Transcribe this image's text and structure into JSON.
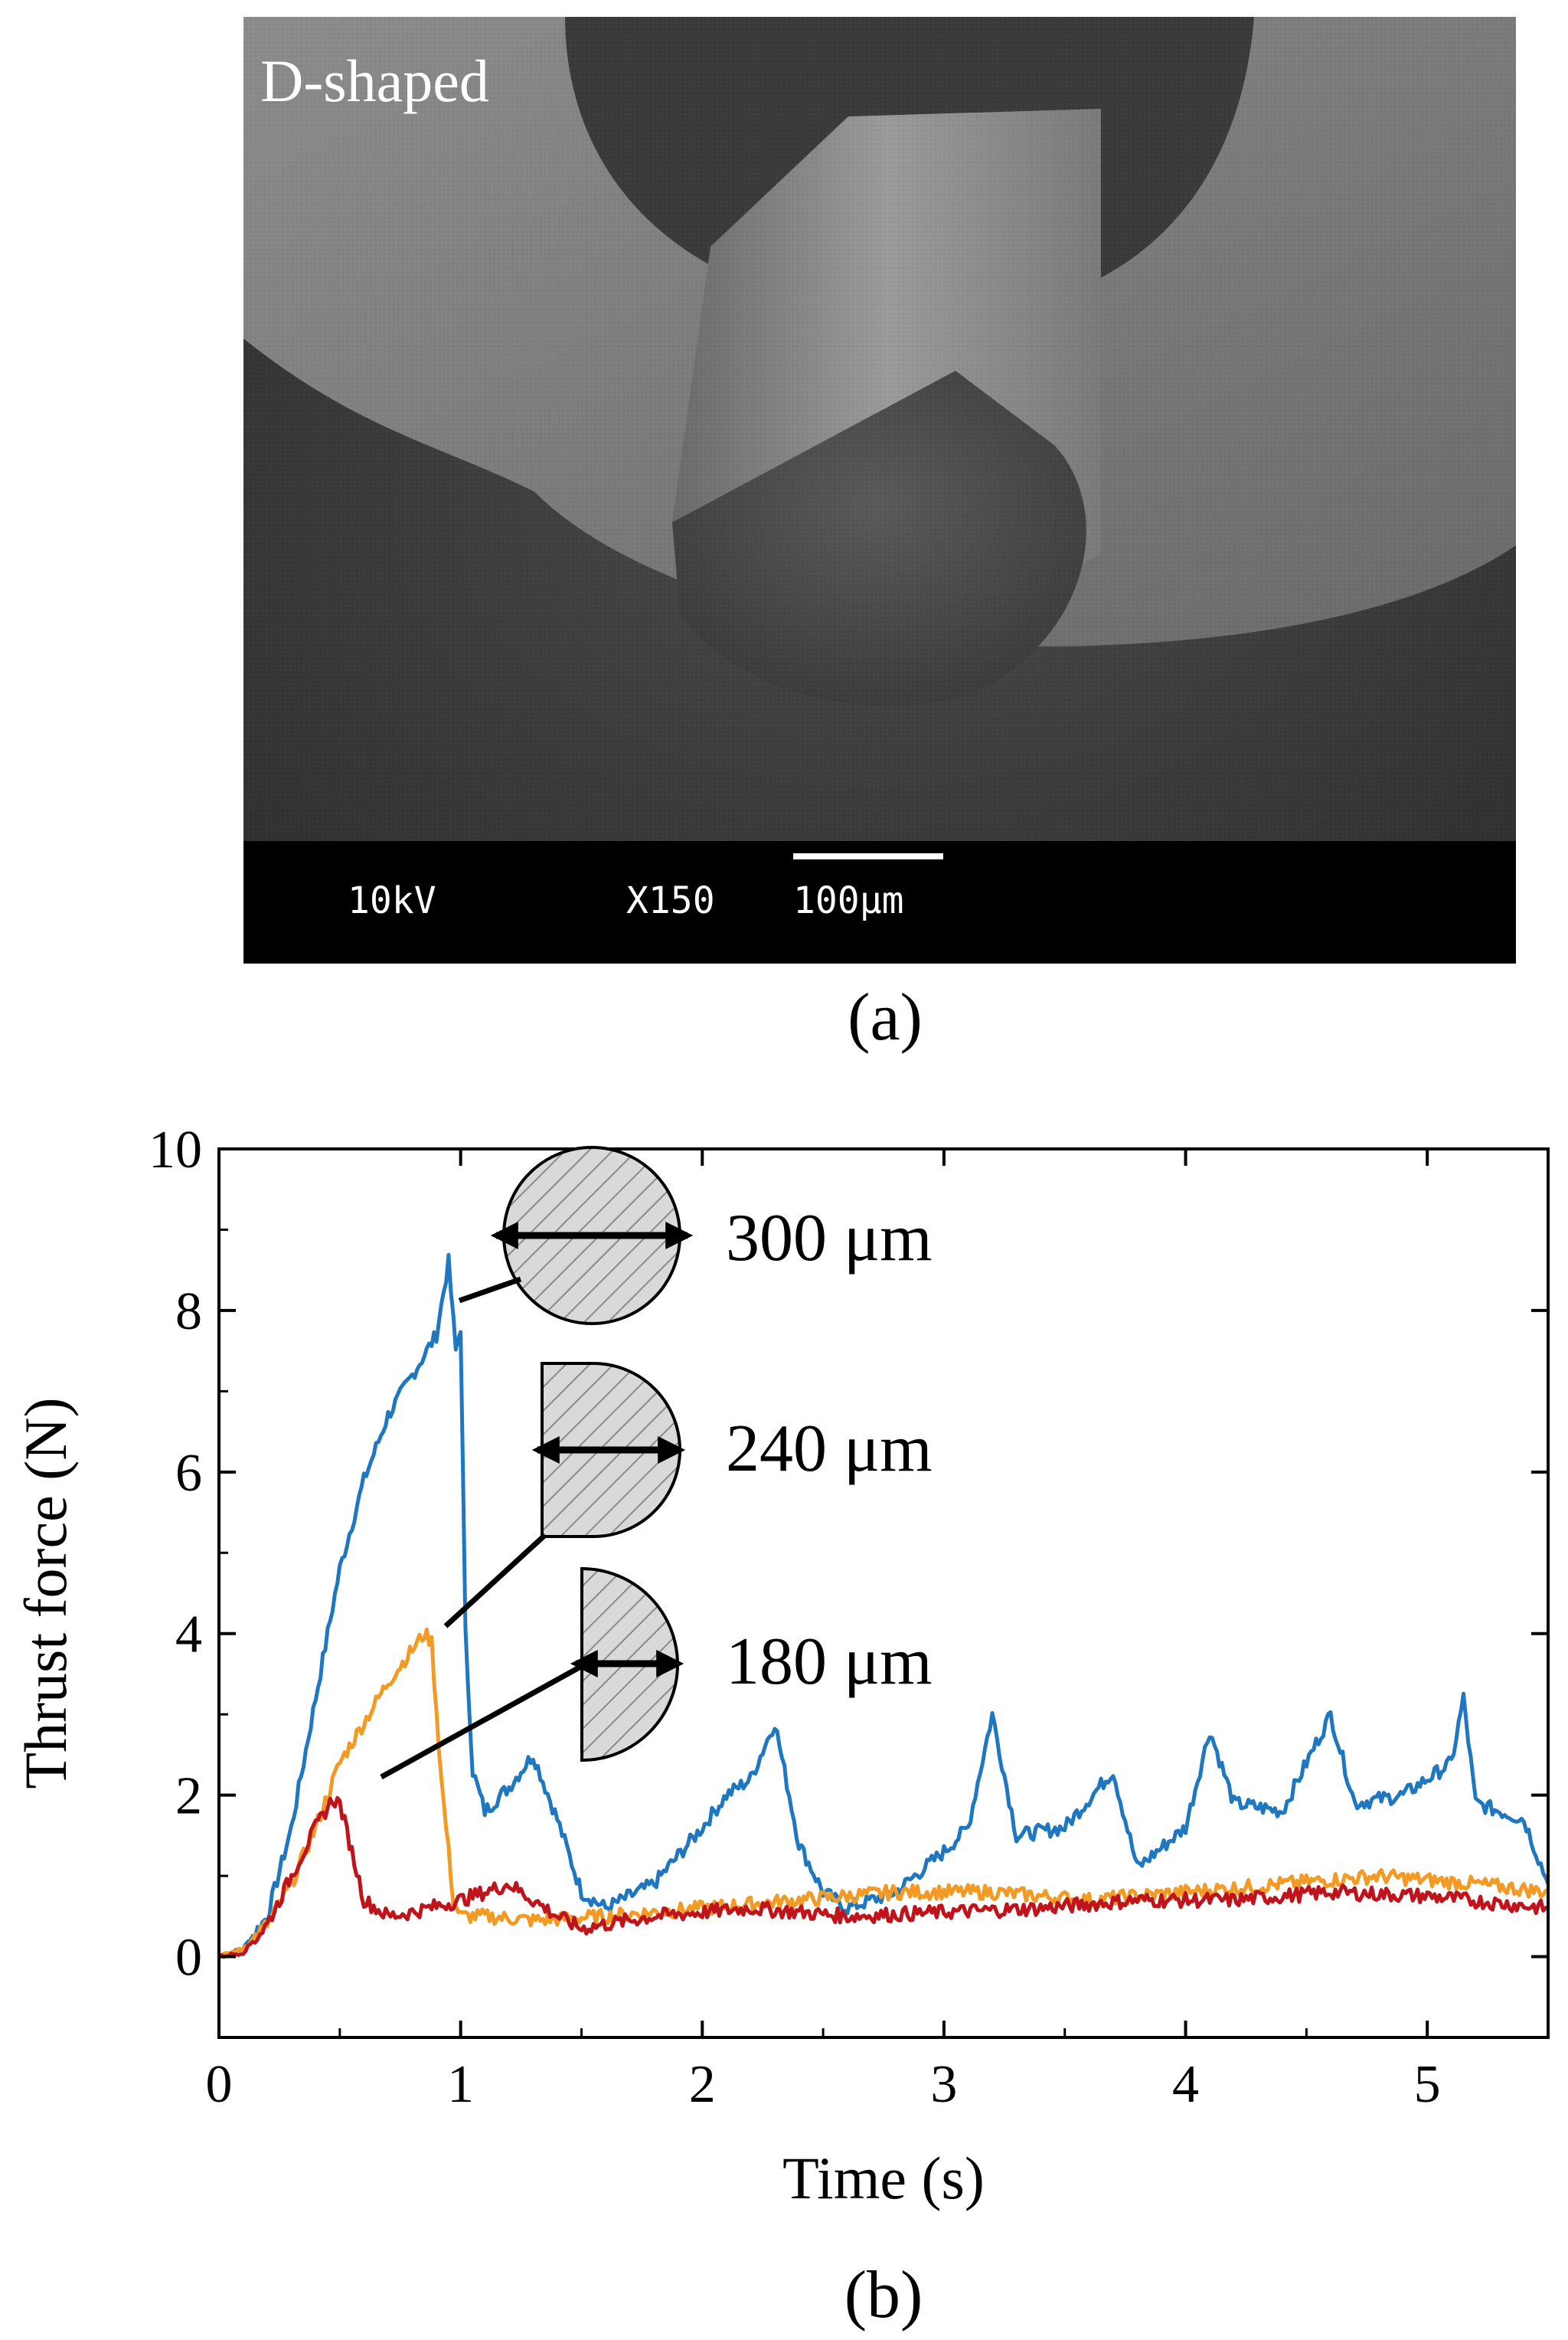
{
  "panel_a": {
    "caption": "(a)",
    "label": "D-shaped",
    "info_bar": {
      "voltage": "10kV",
      "magnification": "X150",
      "scale_bar": "100μm"
    }
  },
  "panel_b": {
    "caption": "(b)"
  },
  "colors": {
    "blue": "#1f77c0",
    "orange": "#f39a24",
    "red": "#c0141c"
  },
  "chart_data": {
    "type": "line",
    "title": "",
    "xlabel": "Time (s)",
    "ylabel": "Thrust force (N)",
    "xlim": [
      0,
      5.5
    ],
    "ylim": [
      -1,
      10
    ],
    "xticks": [
      "0",
      "1",
      "2",
      "3",
      "4",
      "5"
    ],
    "yticks": [
      "0",
      "2",
      "4",
      "6",
      "8",
      "10"
    ],
    "annotations": [
      {
        "text": "300 μm",
        "shape": "full-circle"
      },
      {
        "text": "240 μm",
        "shape": "d-shaped"
      },
      {
        "text": "180 μm",
        "shape": "half-circle"
      }
    ],
    "series": [
      {
        "name": "300 μm",
        "color": "#1f77c0",
        "x": [
          0,
          0.1,
          0.2,
          0.3,
          0.4,
          0.5,
          0.6,
          0.7,
          0.8,
          0.9,
          0.95,
          0.98,
          1.0,
          1.02,
          1.05,
          1.1,
          1.2,
          1.3,
          1.4,
          1.5,
          1.6,
          1.8,
          2.0,
          2.1,
          2.2,
          2.3,
          2.4,
          2.5,
          2.6,
          2.8,
          3.0,
          3.1,
          3.2,
          3.3,
          3.5,
          3.7,
          3.8,
          4.0,
          4.1,
          4.2,
          4.4,
          4.6,
          4.7,
          4.9,
          5.1,
          5.15,
          5.2,
          5.4,
          5.5
        ],
        "y": [
          0.0,
          0.1,
          0.5,
          1.6,
          3.2,
          4.8,
          5.9,
          6.7,
          7.2,
          7.7,
          8.6,
          7.5,
          7.8,
          4.0,
          2.3,
          1.8,
          2.1,
          2.5,
          1.7,
          0.8,
          0.6,
          0.9,
          1.6,
          2.0,
          2.2,
          2.9,
          1.4,
          0.8,
          0.6,
          0.8,
          1.3,
          1.6,
          3.0,
          1.5,
          1.6,
          2.3,
          1.1,
          1.6,
          2.8,
          1.9,
          1.8,
          3.0,
          1.9,
          2.0,
          2.4,
          3.2,
          1.9,
          1.7,
          0.9
        ]
      },
      {
        "name": "240 μm",
        "color": "#f39a24",
        "x": [
          0,
          0.1,
          0.2,
          0.3,
          0.4,
          0.5,
          0.6,
          0.7,
          0.8,
          0.85,
          0.88,
          0.92,
          0.97,
          1.0,
          1.1,
          1.3,
          1.6,
          2.0,
          2.4,
          2.8,
          3.2,
          3.6,
          4.0,
          4.4,
          4.8,
          5.2,
          5.5
        ],
        "y": [
          0.0,
          0.1,
          0.4,
          0.9,
          1.6,
          2.4,
          2.9,
          3.4,
          3.8,
          4.0,
          3.9,
          2.2,
          0.7,
          0.5,
          0.5,
          0.45,
          0.5,
          0.6,
          0.7,
          0.8,
          0.8,
          0.7,
          0.8,
          0.9,
          1.0,
          0.9,
          0.8
        ]
      },
      {
        "name": "180 μm",
        "color": "#c0141c",
        "x": [
          0,
          0.1,
          0.2,
          0.3,
          0.4,
          0.47,
          0.5,
          0.55,
          0.6,
          0.7,
          0.8,
          1.0,
          1.2,
          1.4,
          1.5,
          1.8,
          2.2,
          2.6,
          3.0,
          3.4,
          3.8,
          4.2,
          4.6,
          5.0,
          5.5
        ],
        "y": [
          0.0,
          0.05,
          0.4,
          1.0,
          1.6,
          1.95,
          1.9,
          1.3,
          0.7,
          0.5,
          0.55,
          0.7,
          0.9,
          0.5,
          0.35,
          0.5,
          0.6,
          0.5,
          0.55,
          0.6,
          0.7,
          0.7,
          0.8,
          0.75,
          0.6
        ]
      }
    ]
  }
}
